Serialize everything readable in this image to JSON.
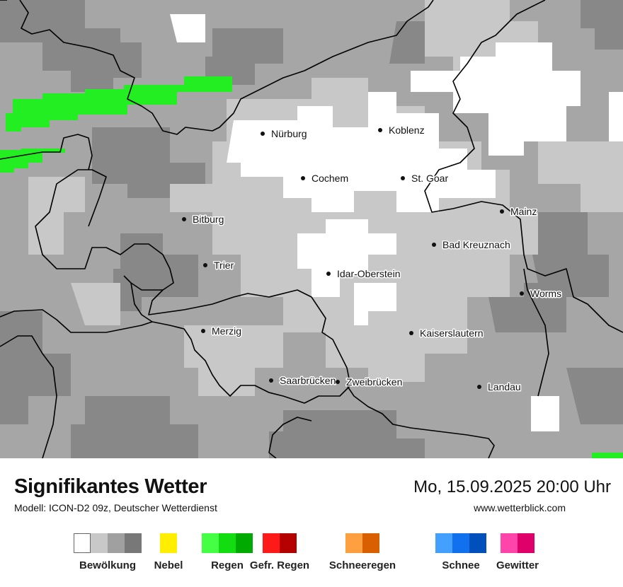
{
  "map": {
    "cities": [
      {
        "name": "Nürburg"
      },
      {
        "name": "Koblenz"
      },
      {
        "name": "Cochem"
      },
      {
        "name": "St. Goar"
      },
      {
        "name": "Bitburg"
      },
      {
        "name": "Mainz"
      },
      {
        "name": "Bad Kreuznach"
      },
      {
        "name": "Trier"
      },
      {
        "name": "Idar-Oberstein"
      },
      {
        "name": "Worms"
      },
      {
        "name": "Merzig"
      },
      {
        "name": "Kaiserslautern"
      },
      {
        "name": "Saarbrücken"
      },
      {
        "name": "Zweibrücken"
      },
      {
        "name": "Landau"
      }
    ]
  },
  "footer": {
    "title": "Signifikantes Wetter",
    "subtitle": "Modell: ICON-D2 09z, Deutscher Wetterdienst",
    "datetime": "Mo, 15.09.2025 20:00 Uhr",
    "website": "www.wetterblick.com"
  },
  "legend": [
    {
      "label": "Bewölkung",
      "colors": [
        "#ffffff",
        "#c8c8c8",
        "#a0a0a0",
        "#787878"
      ]
    },
    {
      "label": "Nebel",
      "colors": [
        "#ffee00"
      ]
    },
    {
      "label": "Regen",
      "colors": [
        "#44ff44",
        "#11dd11",
        "#00aa00"
      ]
    },
    {
      "label": "Gefr. Regen",
      "colors": [
        "#ff1a1a",
        "#b30000"
      ]
    },
    {
      "label": "Schneeregen",
      "colors": [
        "#ffa040",
        "#d96000"
      ]
    },
    {
      "label": "Schnee",
      "colors": [
        "#44a0ff",
        "#1070ee",
        "#0050bb"
      ]
    },
    {
      "label": "Gewitter",
      "colors": [
        "#ff44aa",
        "#e0006a"
      ]
    }
  ]
}
